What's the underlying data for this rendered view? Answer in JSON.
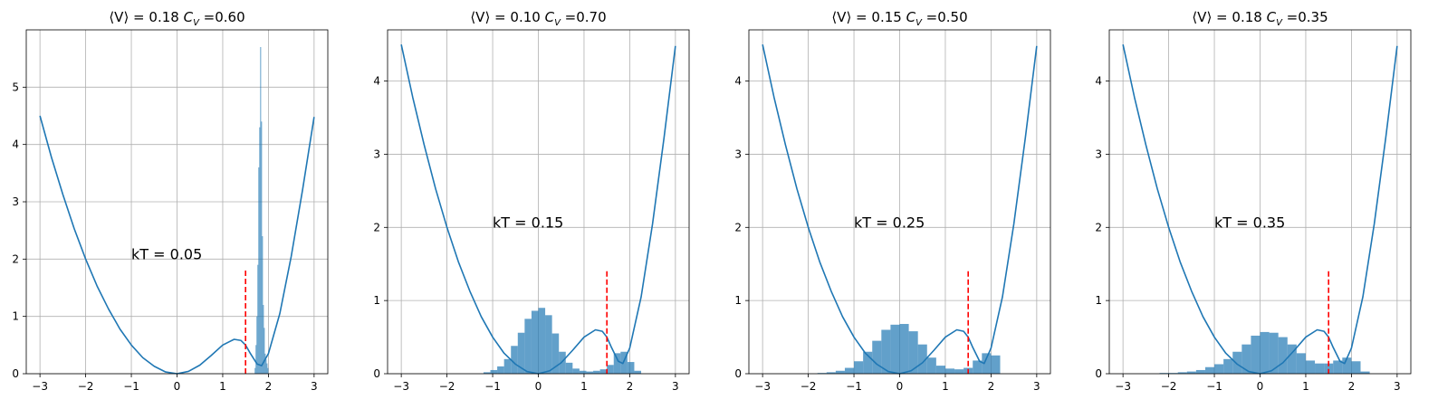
{
  "chart_data": [
    {
      "type": "histogram+line",
      "title": "⟨V⟩ = 0.18 C_V =0.60",
      "title_parts": {
        "prefix": "⟨V⟩ = 0.18 ",
        "symbol": "C",
        "sub": "V",
        "suffix": " =0.60"
      },
      "annotation": {
        "text": "kT = 0.05",
        "x": -1.0,
        "y": 2.0
      },
      "xlim": [
        -3.3,
        3.3
      ],
      "ylim": [
        0,
        6.0
      ],
      "xticks": [
        -3,
        -2,
        -1,
        0,
        1,
        2,
        3
      ],
      "xtick_labels": [
        "−3",
        "−2",
        "−1",
        "0",
        "1",
        "2",
        "3"
      ],
      "yticks": [
        0,
        1,
        2,
        3,
        4,
        5
      ],
      "ytick_labels": [
        "0",
        "1",
        "2",
        "3",
        "4",
        "5"
      ],
      "grid": true,
      "potential_color": "#1f77b4",
      "hist_color": "#1f77b4",
      "hist_alpha": 0.7,
      "vline": {
        "x": 1.5,
        "ymin": 0,
        "ymax": 1.8,
        "color": "#ff0000",
        "style": "dashed"
      },
      "potential_curve": {
        "x": [
          -3.0,
          -2.75,
          -2.5,
          -2.25,
          -2.0,
          -1.75,
          -1.5,
          -1.25,
          -1.0,
          -0.75,
          -0.5,
          -0.25,
          0.0,
          0.25,
          0.5,
          0.75,
          1.0,
          1.25,
          1.4,
          1.5,
          1.6,
          1.75,
          1.85,
          2.0,
          2.25,
          2.5,
          2.75,
          3.0
        ],
        "y": [
          4.5,
          3.78,
          3.13,
          2.53,
          2.0,
          1.53,
          1.13,
          0.78,
          0.5,
          0.28,
          0.13,
          0.03,
          0.0,
          0.04,
          0.15,
          0.32,
          0.5,
          0.6,
          0.58,
          0.5,
          0.36,
          0.17,
          0.14,
          0.35,
          1.05,
          2.05,
          3.22,
          4.48
        ]
      },
      "histogram": {
        "bins": [
          1.7,
          1.72,
          1.74,
          1.76,
          1.78,
          1.8,
          1.82,
          1.84,
          1.86,
          1.88,
          1.9,
          1.92,
          1.94,
          1.96,
          1.98,
          2.0
        ],
        "heights": [
          0.1,
          0.5,
          1.0,
          1.9,
          3.6,
          4.3,
          5.7,
          4.4,
          2.4,
          1.2,
          0.8,
          0.35,
          0.25,
          0.18,
          0.1
        ]
      }
    },
    {
      "type": "histogram+line",
      "title": "⟨V⟩ = 0.10 C_V =0.70",
      "title_parts": {
        "prefix": "⟨V⟩ = 0.10 ",
        "symbol": "C",
        "sub": "V",
        "suffix": " =0.70"
      },
      "annotation": {
        "text": "kT = 0.15",
        "x": -1.0,
        "y": 2.0
      },
      "xlim": [
        -3.3,
        3.3
      ],
      "ylim": [
        0,
        4.7
      ],
      "xticks": [
        -3,
        -2,
        -1,
        0,
        1,
        2,
        3
      ],
      "xtick_labels": [
        "−3",
        "−2",
        "−1",
        "0",
        "1",
        "2",
        "3"
      ],
      "yticks": [
        0,
        1,
        2,
        3,
        4
      ],
      "ytick_labels": [
        "0",
        "1",
        "2",
        "3",
        "4"
      ],
      "grid": true,
      "potential_color": "#1f77b4",
      "hist_color": "#1f77b4",
      "hist_alpha": 0.7,
      "vline": {
        "x": 1.5,
        "ymin": 0,
        "ymax": 1.4,
        "color": "#ff0000",
        "style": "dashed"
      },
      "potential_curve": {
        "x": [
          -3.0,
          -2.75,
          -2.5,
          -2.25,
          -2.0,
          -1.75,
          -1.5,
          -1.25,
          -1.0,
          -0.75,
          -0.5,
          -0.25,
          0.0,
          0.25,
          0.5,
          0.75,
          1.0,
          1.25,
          1.4,
          1.5,
          1.6,
          1.75,
          1.85,
          2.0,
          2.25,
          2.5,
          2.75,
          3.0
        ],
        "y": [
          4.5,
          3.78,
          3.13,
          2.53,
          2.0,
          1.53,
          1.13,
          0.78,
          0.5,
          0.28,
          0.13,
          0.03,
          0.0,
          0.04,
          0.15,
          0.32,
          0.5,
          0.6,
          0.58,
          0.5,
          0.36,
          0.17,
          0.14,
          0.35,
          1.05,
          2.05,
          3.22,
          4.48
        ]
      },
      "histogram": {
        "bins": [
          -1.2,
          -1.05,
          -0.9,
          -0.75,
          -0.6,
          -0.45,
          -0.3,
          -0.15,
          0.0,
          0.15,
          0.3,
          0.45,
          0.6,
          0.75,
          0.9,
          1.05,
          1.2,
          1.35,
          1.5,
          1.65,
          1.8,
          1.95,
          2.1,
          2.25
        ],
        "heights": [
          0.02,
          0.05,
          0.1,
          0.2,
          0.38,
          0.56,
          0.75,
          0.86,
          0.9,
          0.8,
          0.55,
          0.3,
          0.15,
          0.07,
          0.04,
          0.03,
          0.04,
          0.06,
          0.12,
          0.28,
          0.3,
          0.16,
          0.04
        ]
      }
    },
    {
      "type": "histogram+line",
      "title": "⟨V⟩ = 0.15 C_V =0.50",
      "title_parts": {
        "prefix": "⟨V⟩ = 0.15 ",
        "symbol": "C",
        "sub": "V",
        "suffix": " =0.50"
      },
      "annotation": {
        "text": "kT = 0.25",
        "x": -1.0,
        "y": 2.0
      },
      "xlim": [
        -3.3,
        3.3
      ],
      "ylim": [
        0,
        4.7
      ],
      "xticks": [
        -3,
        -2,
        -1,
        0,
        1,
        2,
        3
      ],
      "xtick_labels": [
        "−3",
        "−2",
        "−1",
        "0",
        "1",
        "2",
        "3"
      ],
      "yticks": [
        0,
        1,
        2,
        3,
        4
      ],
      "ytick_labels": [
        "0",
        "1",
        "2",
        "3",
        "4"
      ],
      "grid": true,
      "potential_color": "#1f77b4",
      "hist_color": "#1f77b4",
      "hist_alpha": 0.7,
      "vline": {
        "x": 1.5,
        "ymin": 0,
        "ymax": 1.4,
        "color": "#ff0000",
        "style": "dashed"
      },
      "potential_curve": {
        "x": [
          -3.0,
          -2.75,
          -2.5,
          -2.25,
          -2.0,
          -1.75,
          -1.5,
          -1.25,
          -1.0,
          -0.75,
          -0.5,
          -0.25,
          0.0,
          0.25,
          0.5,
          0.75,
          1.0,
          1.25,
          1.4,
          1.5,
          1.6,
          1.75,
          1.85,
          2.0,
          2.25,
          2.5,
          2.75,
          3.0
        ],
        "y": [
          4.5,
          3.78,
          3.13,
          2.53,
          2.0,
          1.53,
          1.13,
          0.78,
          0.5,
          0.28,
          0.13,
          0.03,
          0.0,
          0.04,
          0.15,
          0.32,
          0.5,
          0.6,
          0.58,
          0.5,
          0.36,
          0.17,
          0.14,
          0.35,
          1.05,
          2.05,
          3.22,
          4.48
        ]
      },
      "histogram": {
        "bins": [
          -1.8,
          -1.6,
          -1.4,
          -1.2,
          -1.0,
          -0.8,
          -0.6,
          -0.4,
          -0.2,
          0.0,
          0.2,
          0.4,
          0.6,
          0.8,
          1.0,
          1.2,
          1.4,
          1.6,
          1.8,
          2.0,
          2.2
        ],
        "heights": [
          0.01,
          0.02,
          0.04,
          0.08,
          0.17,
          0.3,
          0.45,
          0.6,
          0.67,
          0.68,
          0.58,
          0.4,
          0.22,
          0.11,
          0.07,
          0.06,
          0.08,
          0.18,
          0.28,
          0.25,
          0.05
        ]
      }
    },
    {
      "type": "histogram+line",
      "title": "⟨V⟩ = 0.18 C_V =0.35",
      "title_parts": {
        "prefix": "⟨V⟩ = 0.18 ",
        "symbol": "C",
        "sub": "V",
        "suffix": " =0.35"
      },
      "annotation": {
        "text": "kT = 0.35",
        "x": -1.0,
        "y": 2.0
      },
      "xlim": [
        -3.3,
        3.3
      ],
      "ylim": [
        0,
        4.7
      ],
      "xticks": [
        -3,
        -2,
        -1,
        0,
        1,
        2,
        3
      ],
      "xtick_labels": [
        "−3",
        "−2",
        "−1",
        "0",
        "1",
        "2",
        "3"
      ],
      "yticks": [
        0,
        1,
        2,
        3,
        4
      ],
      "ytick_labels": [
        "0",
        "1",
        "2",
        "3",
        "4"
      ],
      "grid": true,
      "potential_color": "#1f77b4",
      "hist_color": "#1f77b4",
      "hist_alpha": 0.7,
      "vline": {
        "x": 1.5,
        "ymin": 0,
        "ymax": 1.4,
        "color": "#ff0000",
        "style": "dashed"
      },
      "potential_curve": {
        "x": [
          -3.0,
          -2.75,
          -2.5,
          -2.25,
          -2.0,
          -1.75,
          -1.5,
          -1.25,
          -1.0,
          -0.75,
          -0.5,
          -0.25,
          0.0,
          0.25,
          0.5,
          0.75,
          1.0,
          1.25,
          1.4,
          1.5,
          1.6,
          1.75,
          1.85,
          2.0,
          2.25,
          2.5,
          2.75,
          3.0
        ],
        "y": [
          4.5,
          3.78,
          3.13,
          2.53,
          2.0,
          1.53,
          1.13,
          0.78,
          0.5,
          0.28,
          0.13,
          0.03,
          0.0,
          0.04,
          0.15,
          0.32,
          0.5,
          0.6,
          0.58,
          0.5,
          0.36,
          0.17,
          0.14,
          0.35,
          1.05,
          2.05,
          3.22,
          4.48
        ]
      },
      "histogram": {
        "bins": [
          -2.2,
          -2.0,
          -1.8,
          -1.6,
          -1.4,
          -1.2,
          -1.0,
          -0.8,
          -0.6,
          -0.4,
          -0.2,
          0.0,
          0.2,
          0.4,
          0.6,
          0.8,
          1.0,
          1.2,
          1.4,
          1.6,
          1.8,
          2.0,
          2.2,
          2.4
        ],
        "heights": [
          0.01,
          0.01,
          0.02,
          0.03,
          0.05,
          0.09,
          0.13,
          0.2,
          0.3,
          0.4,
          0.52,
          0.57,
          0.56,
          0.5,
          0.4,
          0.28,
          0.18,
          0.14,
          0.14,
          0.18,
          0.22,
          0.17,
          0.03
        ]
      }
    }
  ]
}
